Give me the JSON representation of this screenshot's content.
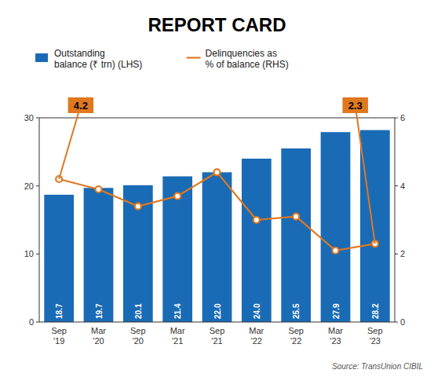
{
  "chart_data": {
    "type": "bar",
    "title": "REPORT CARD",
    "categories": [
      "Sep\n'19",
      "Mar\n'20",
      "Sep\n'20",
      "Mar\n'21",
      "Sep\n'21",
      "Mar\n'22",
      "Sep\n'22",
      "Mar\n'23",
      "Sep\n'23"
    ],
    "series": [
      {
        "name": "Outstanding\nbalance (₹ trn) (LHS)",
        "type": "bar",
        "color": "#1A6BB5",
        "values": [
          18.7,
          19.7,
          20.1,
          21.4,
          22.0,
          24.0,
          25.5,
          27.9,
          28.2
        ],
        "value_labels": [
          "18.7",
          "19.7",
          "20.1",
          "21.4",
          "22.0",
          "24.0",
          "25.5",
          "27.9",
          "28.2"
        ],
        "data_labels": true
      },
      {
        "name": "Delinquencies as\n% of balance (RHS)",
        "type": "line",
        "axis": "y2",
        "color": "#E07820",
        "marker": "circle",
        "values": [
          4.2,
          3.9,
          3.4,
          3.7,
          4.4,
          3.0,
          3.1,
          2.1,
          2.3
        ]
      }
    ],
    "ylim": [
      0,
      30
    ],
    "yticks": [
      0,
      10,
      20,
      30
    ],
    "y2lim": [
      0,
      6
    ],
    "y2ticks": [
      0,
      2,
      4,
      6
    ],
    "grid": false,
    "legend": "top",
    "annotations": [
      {
        "text": "4.2",
        "series": 1,
        "index": 0
      },
      {
        "text": "2.3",
        "series": 1,
        "index": 8
      }
    ],
    "source": "Source: TransUnion CIBIL"
  }
}
